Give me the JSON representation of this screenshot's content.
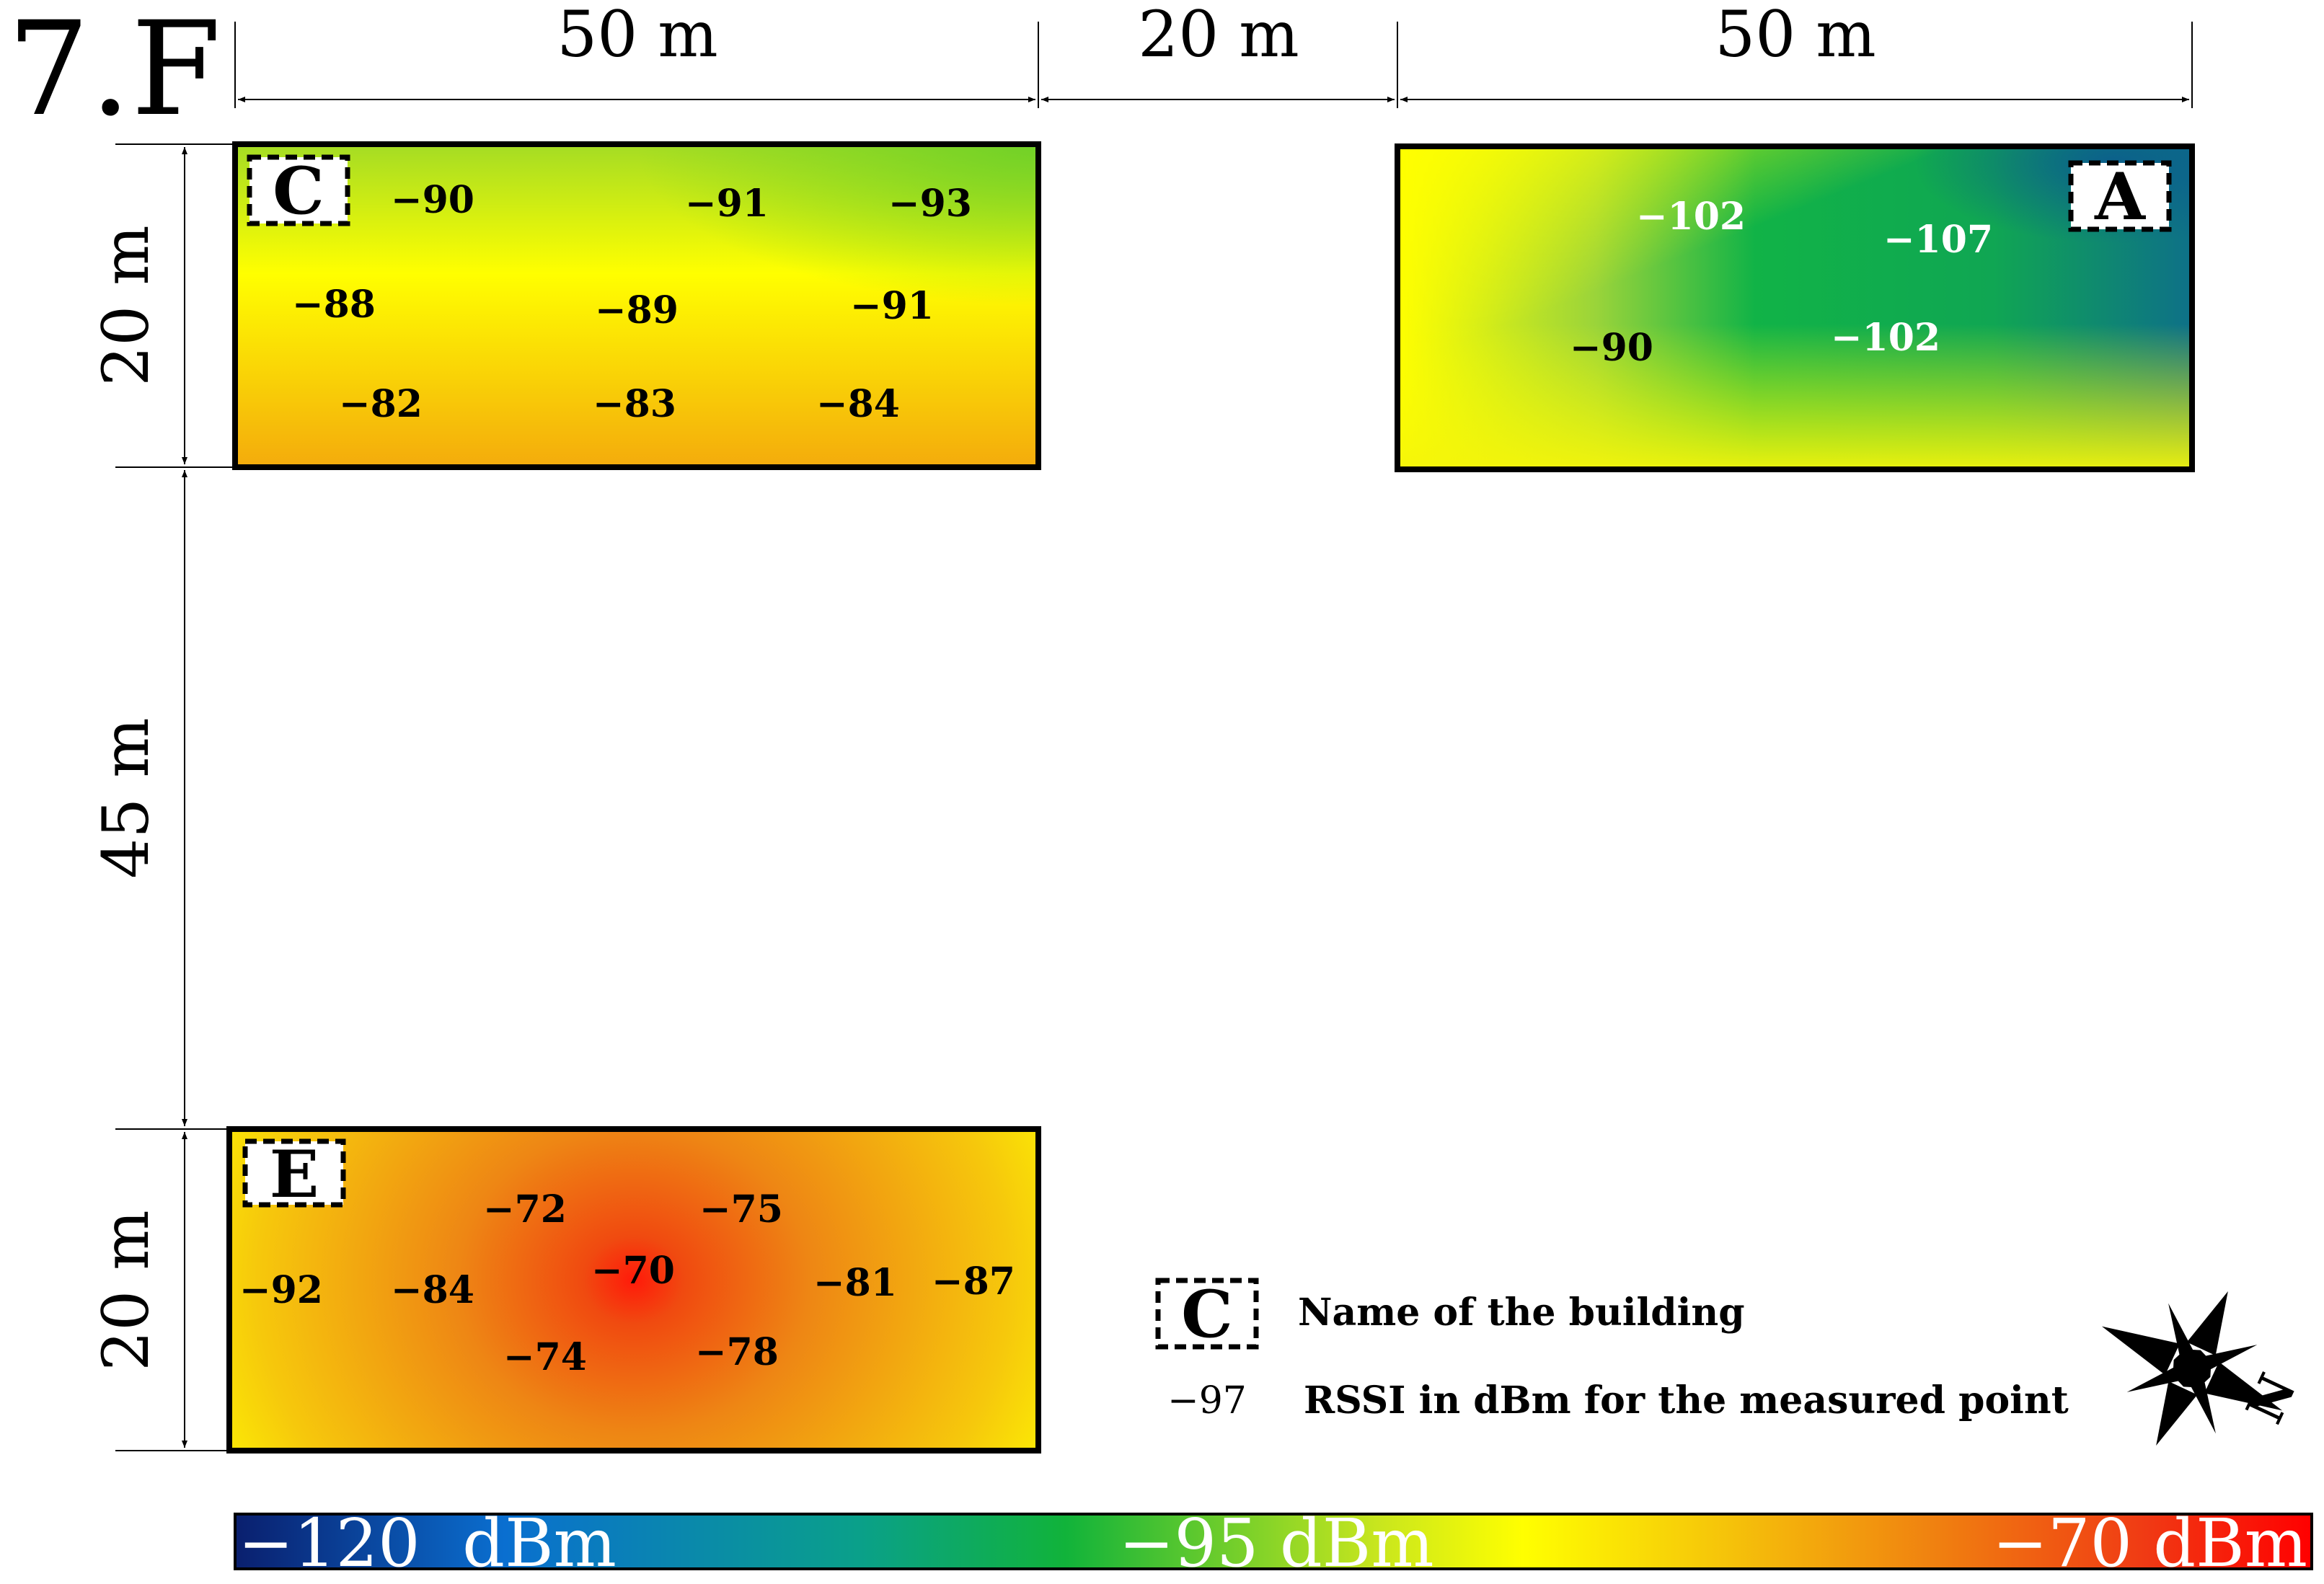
{
  "floor_label": "7.F",
  "dimensions": {
    "top_left": "50 m",
    "top_middle": "20 m",
    "top_right": "50 m",
    "left_top": "20 m",
    "left_middle": "45 m",
    "left_bottom": "20 m"
  },
  "buildings": {
    "C": {
      "name": "C",
      "readings": [
        {
          "value": "−90"
        },
        {
          "value": "−91"
        },
        {
          "value": "−93"
        },
        {
          "value": "−88"
        },
        {
          "value": "−89"
        },
        {
          "value": "−91"
        },
        {
          "value": "−82"
        },
        {
          "value": "−83"
        },
        {
          "value": "−84"
        }
      ]
    },
    "A": {
      "name": "A",
      "readings": [
        {
          "value": "−102"
        },
        {
          "value": "−107"
        },
        {
          "value": "−90"
        },
        {
          "value": "−102"
        }
      ]
    },
    "E": {
      "name": "E",
      "readings": [
        {
          "value": "−72"
        },
        {
          "value": "−75"
        },
        {
          "value": "−92"
        },
        {
          "value": "−84"
        },
        {
          "value": "−70"
        },
        {
          "value": "−81"
        },
        {
          "value": "−87"
        },
        {
          "value": "−74"
        },
        {
          "value": "−78"
        }
      ]
    }
  },
  "legend": {
    "building_symbol": "C",
    "building_text": "Name of the building",
    "rssi_symbol": "−97",
    "rssi_text": "RSSI in dBm for the measured point"
  },
  "colorbar": {
    "min_label": "−120  dBm",
    "mid_label": "−95 dBm",
    "max_label": "−70 dBm",
    "colors": [
      "#0a1f6e",
      "#0a6fd0",
      "#0aa08a",
      "#11b33a",
      "#c8e61e",
      "#ffff00",
      "#f5c20a",
      "#f08010",
      "#f03a14",
      "#ff0000"
    ]
  },
  "compass": {
    "icon": "north-arrow-icon",
    "letter": "N"
  }
}
